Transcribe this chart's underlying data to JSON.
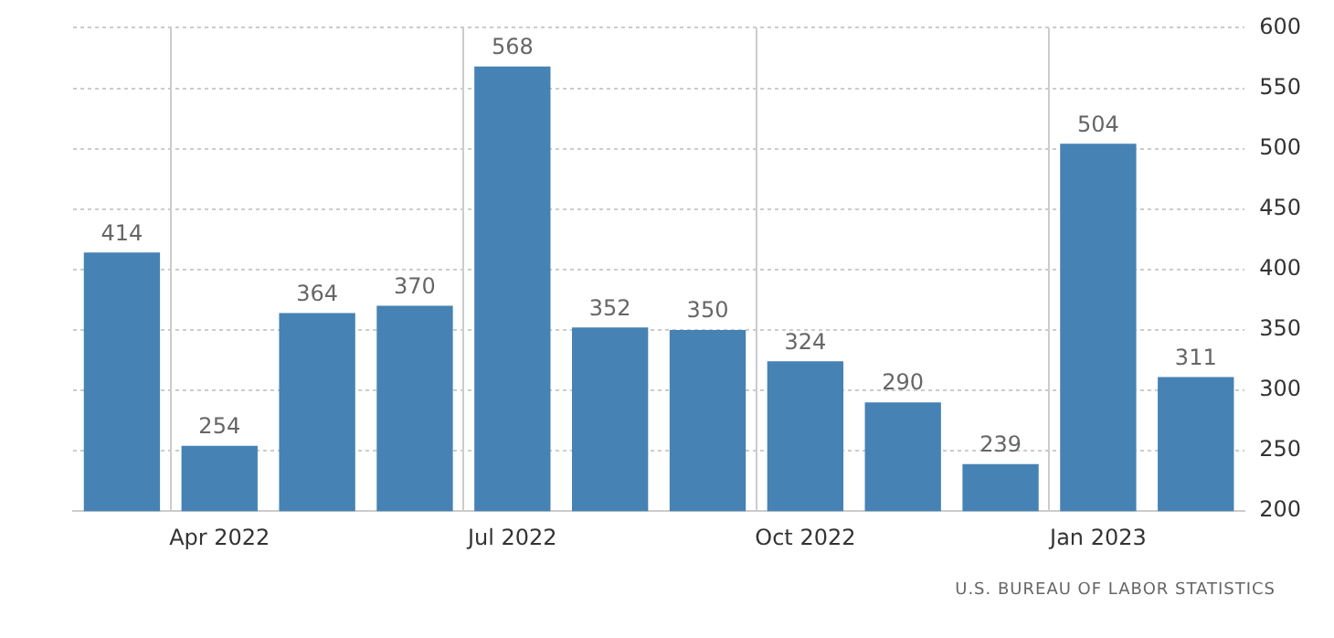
{
  "chart_data": {
    "type": "bar",
    "categories": [
      null,
      "Apr 2022",
      null,
      null,
      "Jul 2022",
      null,
      null,
      "Oct 2022",
      null,
      null,
      "Jan 2023",
      null
    ],
    "values": [
      414,
      254,
      364,
      370,
      568,
      352,
      350,
      324,
      290,
      239,
      504,
      311
    ],
    "color": "#4682b4",
    "ylim": [
      200,
      600
    ],
    "yticks": [
      200,
      250,
      300,
      350,
      400,
      450,
      500,
      550,
      600
    ],
    "grid": true,
    "data_labels": true,
    "legend": false,
    "annotations": [
      "U.S. BUREAU OF LABOR STATISTICS"
    ]
  }
}
